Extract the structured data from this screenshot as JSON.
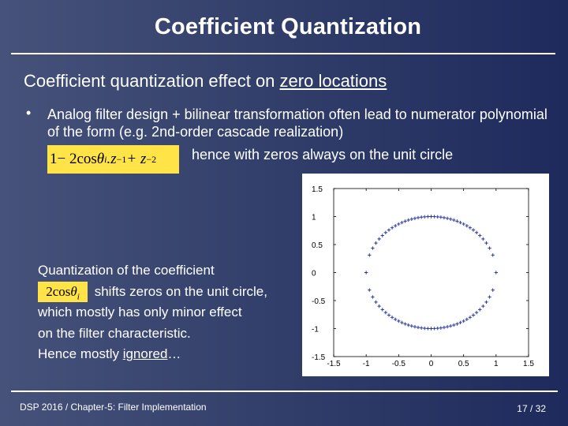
{
  "slide": {
    "title": "Coefficient Quantization",
    "subtitle_pre": "Coefficient quantization effect on ",
    "subtitle_underlined": "zero locations",
    "bullet_marker": "•",
    "bullet_text": "Analog filter design + bilinear transformation often  lead to numerator polynomial of the form (e.g. 2nd-order cascade realization)",
    "formula": {
      "a": "1",
      "b": " − 2cos",
      "theta": "θ",
      "i": "i",
      "c": ".z",
      "e1": "−1",
      "d": " + z",
      "e2": "−2"
    },
    "hence_text": "hence with zeros always on the unit circle",
    "coef_formula": {
      "a": "2cos",
      "theta": "θ",
      "i": "i"
    },
    "quant_line1": "Quantization of  the coefficient",
    "quant_line2": " shifts zeros on the unit circle,",
    "quant_line3": "which mostly has only minor effect",
    "quant_line4": "on the filter characteristic.",
    "quant_line5_pre": "Hence mostly ",
    "quant_line5_ul": "ignored",
    "quant_line5_post": "…",
    "footer_left": "DSP 2016  /  Chapter-5: Filter Implementation",
    "footer_right": "17 / 32"
  },
  "chart_data": {
    "type": "scatter",
    "marker": "+",
    "marker_color": "#2b3aa0",
    "xlim": [
      -1.5,
      1.5
    ],
    "ylim": [
      -1.5,
      1.5
    ],
    "xticks": [
      "-1.5",
      "-1",
      "-0.5",
      "0",
      "0.5",
      "1",
      "1.5"
    ],
    "yticks": [
      "1.5",
      "1",
      "0.5",
      "0",
      "-0.5",
      "-1",
      "-1.5"
    ],
    "grid": false,
    "points": [
      [
        0.0,
        1.0
      ],
      [
        0.1,
        0.995
      ],
      [
        0.2,
        0.98
      ],
      [
        0.3,
        0.954
      ],
      [
        0.4,
        0.917
      ],
      [
        0.5,
        0.866
      ],
      [
        0.6,
        0.8
      ],
      [
        0.7,
        0.714
      ],
      [
        0.8,
        0.6
      ],
      [
        0.9,
        0.436
      ],
      [
        1.0,
        0.0
      ],
      [
        -0.1,
        0.995
      ],
      [
        -0.2,
        0.98
      ],
      [
        -0.3,
        0.954
      ],
      [
        -0.4,
        0.917
      ],
      [
        -0.5,
        0.866
      ],
      [
        -0.6,
        0.8
      ],
      [
        -0.7,
        0.714
      ],
      [
        -0.8,
        0.6
      ],
      [
        -0.9,
        0.436
      ],
      [
        -1.0,
        0.0
      ],
      [
        0.05,
        0.999
      ],
      [
        0.15,
        0.989
      ],
      [
        0.25,
        0.968
      ],
      [
        0.35,
        0.937
      ],
      [
        0.45,
        0.893
      ],
      [
        0.55,
        0.835
      ],
      [
        0.65,
        0.76
      ],
      [
        0.75,
        0.661
      ],
      [
        0.85,
        0.527
      ],
      [
        0.95,
        0.312
      ],
      [
        -0.05,
        0.999
      ],
      [
        -0.15,
        0.989
      ],
      [
        -0.25,
        0.968
      ],
      [
        -0.35,
        0.937
      ],
      [
        -0.45,
        0.893
      ],
      [
        -0.55,
        0.835
      ],
      [
        -0.65,
        0.76
      ],
      [
        -0.75,
        0.661
      ],
      [
        -0.85,
        0.527
      ],
      [
        -0.95,
        0.312
      ],
      [
        0.0,
        -1.0
      ],
      [
        0.1,
        -0.995
      ],
      [
        0.2,
        -0.98
      ],
      [
        0.3,
        -0.954
      ],
      [
        0.4,
        -0.917
      ],
      [
        0.5,
        -0.866
      ],
      [
        0.6,
        -0.8
      ],
      [
        0.7,
        -0.714
      ],
      [
        0.8,
        -0.6
      ],
      [
        0.9,
        -0.436
      ],
      [
        -0.1,
        -0.995
      ],
      [
        -0.2,
        -0.98
      ],
      [
        -0.3,
        -0.954
      ],
      [
        -0.4,
        -0.917
      ],
      [
        -0.5,
        -0.866
      ],
      [
        -0.6,
        -0.8
      ],
      [
        -0.7,
        -0.714
      ],
      [
        -0.8,
        -0.6
      ],
      [
        -0.9,
        -0.436
      ],
      [
        0.05,
        -0.999
      ],
      [
        0.15,
        -0.989
      ],
      [
        0.25,
        -0.968
      ],
      [
        0.35,
        -0.937
      ],
      [
        0.45,
        -0.893
      ],
      [
        0.55,
        -0.835
      ],
      [
        0.65,
        -0.76
      ],
      [
        0.75,
        -0.661
      ],
      [
        0.85,
        -0.527
      ],
      [
        0.95,
        -0.312
      ],
      [
        -0.05,
        -0.999
      ],
      [
        -0.15,
        -0.989
      ],
      [
        -0.25,
        -0.968
      ],
      [
        -0.35,
        -0.937
      ],
      [
        -0.45,
        -0.893
      ],
      [
        -0.55,
        -0.835
      ],
      [
        -0.65,
        -0.76
      ],
      [
        -0.75,
        -0.661
      ],
      [
        -0.85,
        -0.527
      ],
      [
        -0.95,
        -0.312
      ]
    ]
  }
}
